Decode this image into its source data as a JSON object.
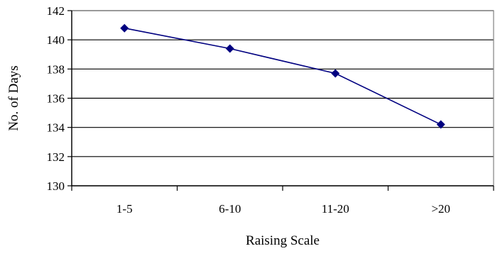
{
  "chart_data": {
    "type": "line",
    "title": "",
    "xlabel": "Raising Scale",
    "ylabel": "No. of Days",
    "categories": [
      "1-5",
      "6-10",
      "11-20",
      ">20"
    ],
    "series": [
      {
        "values": [
          140.8,
          139.4,
          137.7,
          134.2
        ]
      }
    ],
    "ylim": [
      130,
      142
    ],
    "yticks": [
      "130",
      "132",
      "134",
      "136",
      "138",
      "140",
      "142"
    ],
    "grid": "horizontal",
    "legend": "none",
    "colors": {
      "line": "#000080",
      "marker": "#000080",
      "grid": "#000000",
      "plot_border": "#808080"
    },
    "marker": "diamond"
  }
}
